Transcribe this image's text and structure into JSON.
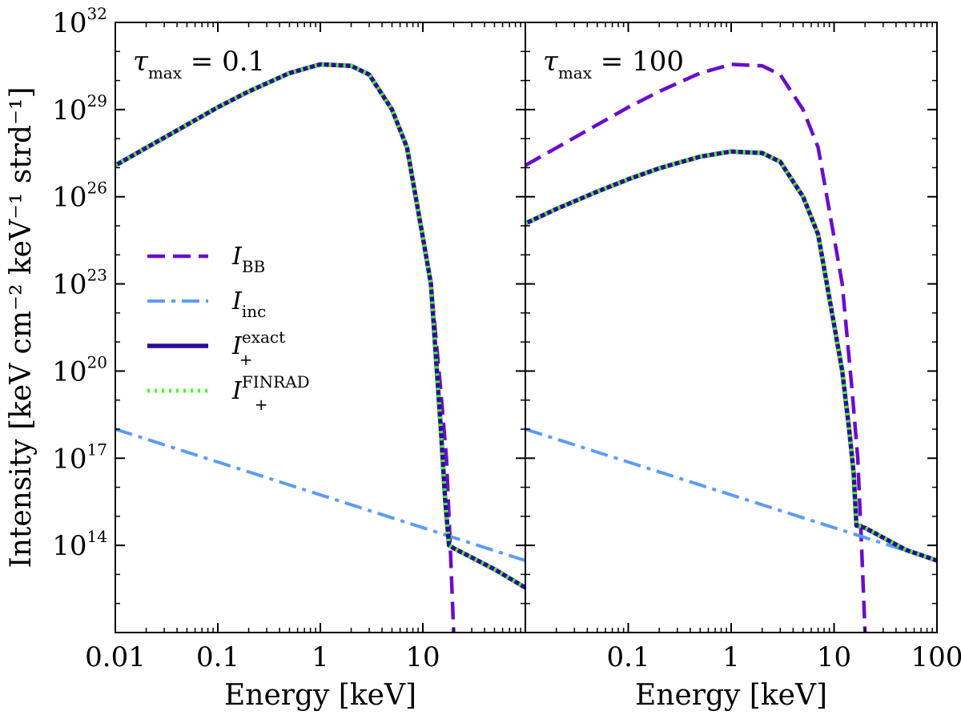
{
  "chart_data": [
    {
      "type": "line",
      "panel_label": {
        "symbol": "τ",
        "sub": "max",
        "rest": " = 0.1"
      },
      "xlabel": "Energy [keV]",
      "ylabel": "Intensity [keV cm⁻² keV⁻¹ strd⁻¹]",
      "xscale": "log",
      "yscale": "log",
      "xlim": [
        0.01,
        100
      ],
      "ylim": [
        100000000000.0,
        1e+32
      ],
      "x_ticks": [
        0.01,
        0.1,
        1,
        10
      ],
      "x_tick_labels": [
        "0.01",
        "0.1",
        "1",
        "10"
      ],
      "y_ticks": [
        100000000000000.0,
        1e+17,
        1e+20,
        1e+23,
        1e+26,
        1e+29,
        1e+32
      ],
      "y_tick_exponents": [
        "14",
        "17",
        "20",
        "23",
        "26",
        "29",
        "32"
      ],
      "y_tick_base": "10",
      "legend": {
        "placement": "center-left",
        "entries": [
          {
            "series": "I_BB",
            "base": "I",
            "sub": "BB",
            "sup": ""
          },
          {
            "series": "I_inc",
            "base": "I",
            "sub": "inc",
            "sup": ""
          },
          {
            "series": "I_+^exact",
            "base": "I",
            "sub": "+",
            "sup": "exact"
          },
          {
            "series": "I_+^FINRAD",
            "base": "I",
            "sub": "+",
            "sup": "FINRAD"
          }
        ]
      },
      "series": [
        {
          "name": "I_BB",
          "color": "#6a0dcc",
          "style": "dashed",
          "x": [
            0.01,
            0.02,
            0.05,
            0.1,
            0.2,
            0.5,
            1,
            2,
            3,
            5,
            7,
            10,
            12,
            15,
            17,
            18.5,
            20
          ],
          "y": [
            1.2e+27,
            4.8e+27,
            3e+28,
            1.2e+29,
            4.2e+29,
            1.8e+30,
            3.6e+30,
            3.2e+30,
            1.6e+30,
            1e+29,
            5e+27,
            4e+24,
            1e+23,
            2e+19,
            1e+17,
            100000000000000.0,
            100000000000.0
          ]
        },
        {
          "name": "I_inc",
          "color": "#5b9cf5",
          "style": "dashdot",
          "x": [
            0.01,
            100
          ],
          "y": [
            1e+18,
            30000000000000.0
          ]
        },
        {
          "name": "I_+^exact",
          "color": "#2d0a9a",
          "style": "solid",
          "x": [
            0.01,
            0.02,
            0.05,
            0.1,
            0.2,
            0.5,
            1,
            2,
            3,
            5,
            7,
            10,
            12,
            15,
            16.5,
            18,
            20,
            50,
            100
          ],
          "y": [
            1.2e+27,
            4.8e+27,
            3e+28,
            1.2e+29,
            4.2e+29,
            1.8e+30,
            3.6e+30,
            3.2e+30,
            1.6e+30,
            1e+29,
            5e+27,
            4e+24,
            1e+23,
            1e+18,
            4000000000000000.0,
            100000000000000.0,
            80000000000000.0,
            15000000000000.0,
            3500000000000.0
          ]
        },
        {
          "name": "I_+^FINRAD",
          "color": "#44ff22",
          "style": "dotted",
          "x": [
            0.01,
            0.02,
            0.05,
            0.1,
            0.2,
            0.5,
            1,
            2,
            3,
            5,
            7,
            10,
            12,
            15,
            16.5,
            18,
            20,
            50,
            100
          ],
          "y": [
            1.2e+27,
            4.8e+27,
            3e+28,
            1.2e+29,
            4.2e+29,
            1.8e+30,
            3.6e+30,
            3.2e+30,
            1.6e+30,
            1e+29,
            5e+27,
            4e+24,
            1e+23,
            1e+18,
            4000000000000000.0,
            100000000000000.0,
            80000000000000.0,
            15000000000000.0,
            3500000000000.0
          ]
        }
      ]
    },
    {
      "type": "line",
      "panel_label": {
        "symbol": "τ",
        "sub": "max",
        "rest": " = 100"
      },
      "xlabel": "Energy [keV]",
      "xscale": "log",
      "yscale": "log",
      "xlim": [
        0.01,
        100
      ],
      "ylim": [
        100000000000.0,
        1e+32
      ],
      "x_ticks": [
        0.1,
        1,
        10,
        100
      ],
      "x_tick_labels": [
        "0.1",
        "1",
        "10",
        "100"
      ],
      "y_ticks": [
        100000000000000.0,
        1e+17,
        1e+20,
        1e+23,
        1e+26,
        1e+29,
        1e+32
      ],
      "series": [
        {
          "name": "I_BB",
          "color": "#6a0dcc",
          "style": "dashed",
          "x": [
            0.01,
            0.02,
            0.05,
            0.1,
            0.2,
            0.5,
            1,
            2,
            3,
            5,
            7,
            10,
            12,
            15,
            17,
            18.5,
            20
          ],
          "y": [
            1.2e+27,
            4.8e+27,
            3e+28,
            1.2e+29,
            4.2e+29,
            1.8e+30,
            3.6e+30,
            3.2e+30,
            1.6e+30,
            1e+29,
            5e+27,
            4e+24,
            1e+23,
            2e+19,
            1e+17,
            100000000000000.0,
            100000000000.0
          ]
        },
        {
          "name": "I_inc",
          "color": "#5b9cf5",
          "style": "dashdot",
          "x": [
            0.01,
            100
          ],
          "y": [
            1e+18,
            30000000000000.0
          ]
        },
        {
          "name": "I_+^exact",
          "color": "#2d0a9a",
          "style": "solid",
          "x": [
            0.01,
            0.02,
            0.05,
            0.1,
            0.2,
            0.5,
            1,
            2,
            3,
            5,
            7,
            10,
            12,
            14,
            15.5,
            16.5,
            20,
            50,
            100
          ],
          "y": [
            1.2e+25,
            3.8e+25,
            1.5e+26,
            4e+26,
            9.5e+26,
            2.4e+27,
            3.6e+27,
            3.2e+27,
            1.6e+27,
            1e+26,
            5e+24,
            4e+21,
            1e+20,
            1e+18,
            3e+16,
            480000000000000.0,
            400000000000000.0,
            70000000000000.0,
            30000000000000.0
          ]
        },
        {
          "name": "I_+^FINRAD",
          "color": "#44ff22",
          "style": "dotted",
          "x": [
            0.01,
            0.02,
            0.05,
            0.1,
            0.2,
            0.5,
            1,
            2,
            3,
            5,
            7,
            10,
            12,
            14,
            15.5,
            16.5,
            20,
            50,
            100
          ],
          "y": [
            1.2e+25,
            3.8e+25,
            1.5e+26,
            4e+26,
            9.5e+26,
            2.4e+27,
            3.6e+27,
            3.2e+27,
            1.6e+27,
            1e+26,
            5e+24,
            4e+21,
            1e+20,
            1e+18,
            3e+16,
            480000000000000.0,
            400000000000000.0,
            70000000000000.0,
            30000000000000.0
          ]
        }
      ]
    }
  ]
}
